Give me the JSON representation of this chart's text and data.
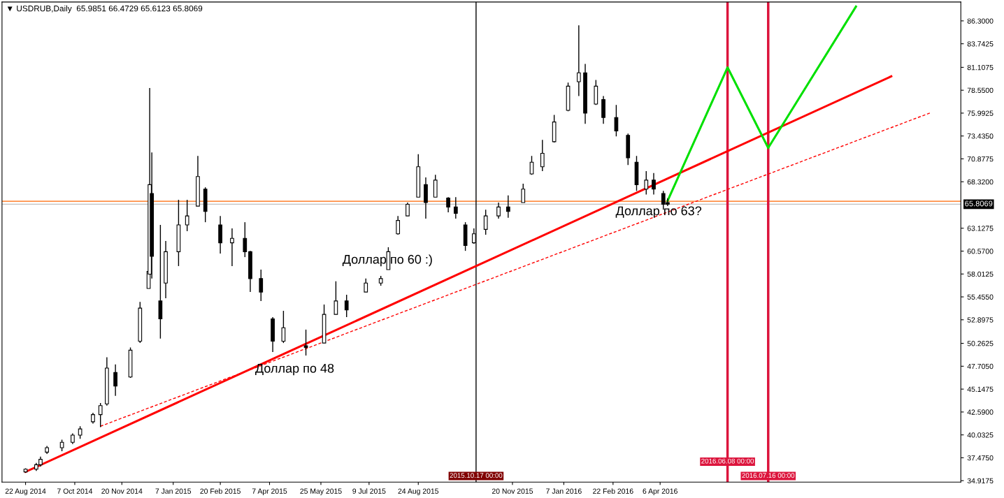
{
  "chart_data": {
    "type": "candlestick",
    "title": "▼ USDRUB,Daily  65.9851 66.4729 65.6123 65.8069",
    "x": [
      "2014-08-22",
      "2014-09-01",
      "2014-09-05",
      "2014-09-11",
      "2014-09-25",
      "2014-10-05",
      "2014-10-12",
      "2014-10-24",
      "2014-10-31",
      "2014-11-06",
      "2014-11-14",
      "2014-11-28",
      "2014-12-07",
      "2014-12-15",
      "2014-12-16",
      "2014-12-18",
      "2014-12-26",
      "2014-12-31",
      "2015-01-12",
      "2015-01-20",
      "2015-01-30",
      "2015-02-06",
      "2015-02-20",
      "2015-03-03",
      "2015-03-15",
      "2015-03-20",
      "2015-03-30",
      "2015-04-10",
      "2015-04-20",
      "2015-05-11",
      "2015-05-28",
      "2015-06-08",
      "2015-06-18",
      "2015-07-06",
      "2015-07-20",
      "2015-07-27",
      "2015-08-05",
      "2015-08-14",
      "2015-08-24",
      "2015-08-31",
      "2015-09-09",
      "2015-09-21",
      "2015-09-28",
      "2015-10-07",
      "2015-10-15",
      "2015-10-26",
      "2015-11-07",
      "2015-11-16",
      "2015-11-30",
      "2015-12-08",
      "2015-12-18",
      "2015-12-29",
      "2016-01-11",
      "2016-01-21",
      "2016-01-27",
      "2016-02-06",
      "2016-02-13",
      "2016-02-25",
      "2016-03-07",
      "2016-03-15",
      "2016-03-24",
      "2016-03-31",
      "2016-04-09",
      "2016-04-13"
    ],
    "ohlc": [
      [
        35.9,
        36.3,
        35.8,
        36.2
      ],
      [
        36.2,
        36.9,
        36.0,
        36.7
      ],
      [
        36.7,
        37.6,
        36.5,
        37.3
      ],
      [
        38.1,
        38.8,
        37.9,
        38.6
      ],
      [
        38.6,
        39.5,
        38.2,
        39.2
      ],
      [
        39.2,
        40.2,
        39.0,
        40.0
      ],
      [
        40.0,
        41.0,
        39.6,
        40.7
      ],
      [
        41.5,
        42.5,
        41.3,
        42.3
      ],
      [
        42.3,
        43.6,
        40.9,
        43.3
      ],
      [
        43.5,
        48.7,
        43.3,
        47.5
      ],
      [
        47.0,
        47.9,
        44.4,
        45.5
      ],
      [
        46.5,
        49.8,
        46.4,
        49.5
      ],
      [
        50.5,
        54.9,
        50.3,
        54.2
      ],
      [
        56.4,
        58.5,
        56.4,
        58.3
      ],
      [
        58.0,
        78.8,
        57.8,
        68.0
      ],
      [
        67.0,
        71.6,
        57.5,
        60.0
      ],
      [
        55.0,
        63.5,
        50.8,
        53.0
      ],
      [
        57.0,
        61.7,
        55.3,
        60.5
      ],
      [
        60.5,
        66.3,
        58.9,
        63.5
      ],
      [
        63.5,
        66.3,
        62.8,
        64.5
      ],
      [
        65.6,
        71.2,
        65.6,
        68.9
      ],
      [
        67.5,
        67.7,
        63.8,
        65.0
      ],
      [
        63.5,
        64.5,
        60.3,
        61.5
      ],
      [
        61.5,
        63.1,
        58.9,
        62.0
      ],
      [
        62.0,
        63.8,
        59.9,
        60.5
      ],
      [
        60.5,
        60.6,
        56.0,
        57.5
      ],
      [
        57.5,
        58.5,
        55.0,
        56.0
      ],
      [
        53.0,
        53.2,
        49.3,
        50.5
      ],
      [
        50.5,
        53.9,
        50.3,
        52.0
      ],
      [
        50.0,
        51.8,
        48.9,
        49.8
      ],
      [
        50.3,
        54.6,
        50.3,
        53.5
      ],
      [
        53.5,
        57.2,
        53.5,
        55.0
      ],
      [
        55.0,
        55.7,
        53.2,
        54.0
      ],
      [
        56.0,
        57.5,
        56.0,
        57.0
      ],
      [
        57.0,
        57.8,
        56.7,
        57.5
      ],
      [
        58.5,
        61.0,
        58.5,
        60.5
      ],
      [
        62.5,
        64.5,
        62.4,
        64.0
      ],
      [
        64.5,
        66.0,
        64.5,
        65.8
      ],
      [
        66.6,
        71.4,
        66.6,
        70.0
      ],
      [
        68.0,
        68.8,
        64.2,
        66.0
      ],
      [
        66.6,
        69.1,
        66.6,
        68.5
      ],
      [
        66.5,
        66.6,
        64.9,
        65.5
      ],
      [
        65.5,
        66.6,
        64.2,
        64.8
      ],
      [
        63.5,
        63.8,
        60.6,
        61.2
      ],
      [
        61.5,
        63.1,
        61.4,
        62.5
      ],
      [
        63.0,
        65.2,
        62.4,
        64.5
      ],
      [
        64.5,
        66.0,
        64.2,
        65.5
      ],
      [
        65.5,
        66.8,
        64.3,
        65.0
      ],
      [
        66.0,
        68.1,
        66.0,
        67.5
      ],
      [
        69.2,
        71.2,
        69.1,
        70.5
      ],
      [
        70.0,
        73.0,
        69.5,
        71.5
      ],
      [
        72.8,
        75.8,
        72.7,
        75.0
      ],
      [
        76.3,
        79.4,
        76.2,
        79.0
      ],
      [
        79.5,
        85.8,
        77.9,
        80.5
      ],
      [
        80.5,
        81.5,
        74.8,
        76.0
      ],
      [
        77.0,
        79.7,
        76.9,
        79.0
      ],
      [
        77.5,
        77.9,
        74.8,
        75.5
      ],
      [
        75.5,
        76.9,
        73.4,
        74.0
      ],
      [
        73.5,
        73.7,
        70.2,
        71.0
      ],
      [
        70.5,
        71.2,
        67.3,
        68.0
      ],
      [
        67.5,
        69.5,
        66.9,
        68.5
      ],
      [
        68.5,
        69.3,
        66.9,
        67.5
      ],
      [
        67.0,
        67.3,
        65.2,
        65.8
      ],
      [
        65.9851,
        66.4729,
        65.6123,
        65.8069
      ]
    ],
    "series": [
      {
        "type": "line",
        "color": "#ff0000",
        "line_style": "solid",
        "x": [
          "2014-08-22",
          "2016-11-08"
        ],
        "values": [
          35.9,
          80.1
        ]
      },
      {
        "type": "line",
        "color": "#ff0000",
        "line_style": "dashed",
        "x": [
          "2014-10-31",
          "2016-12-14"
        ],
        "values": [
          41.0,
          76.0
        ]
      },
      {
        "type": "line",
        "color": "#00e000",
        "line_style": "solid",
        "x": [
          "2016-04-13",
          "2016-06-08",
          "2016-07-16",
          "2016-10-06"
        ],
        "values": [
          66.2,
          81.1,
          72.1,
          87.9
        ]
      }
    ],
    "ref_lines": [
      {
        "axis": "y",
        "value": 66.1415,
        "color": "#ff6600"
      },
      {
        "axis": "y",
        "value": 65.8069,
        "color": "#c0c0c0",
        "label": "65.8069"
      },
      {
        "axis": "x",
        "value": "2015-10-17",
        "color": "#000000",
        "label": "2015.10.17 00:00"
      },
      {
        "axis": "x",
        "value": "2016-06-08",
        "color": "#dc143c",
        "label": "2016.06.08 00:00"
      },
      {
        "axis": "x",
        "value": "2016-07-16",
        "color": "#dc143c",
        "label": "2016.07.16 00:00"
      }
    ],
    "annotations": [
      "Доллар по 48",
      "Доллар по 60 :)",
      "Доллар по 63?"
    ],
    "xlim": [
      "2014-07-31",
      "2017-01-12"
    ],
    "xticks": [
      {
        "value": "2014-08-22",
        "label": "22 Aug 2014"
      },
      {
        "value": "2014-10-07",
        "label": "7 Oct 2014"
      },
      {
        "value": "2014-11-20",
        "label": "20 Nov 2014"
      },
      {
        "value": "2015-01-07",
        "label": "7 Jan 2015"
      },
      {
        "value": "2015-02-20",
        "label": "20 Feb 2015"
      },
      {
        "value": "2015-04-07",
        "label": "7 Apr 2015"
      },
      {
        "value": "2015-05-25",
        "label": "25 May 2015"
      },
      {
        "value": "2015-07-09",
        "label": "9 Jul 2015"
      },
      {
        "value": "2015-08-24",
        "label": "24 Aug 2015"
      },
      {
        "value": "2015-11-20",
        "label": "20 Nov 2015"
      },
      {
        "value": "2016-01-07",
        "label": "7 Jan 2016"
      },
      {
        "value": "2016-02-22",
        "label": "22 Feb 2016"
      },
      {
        "value": "2016-04-06",
        "label": "6 Apr 2016"
      }
    ],
    "ylim": [
      34.76,
      88.41
    ],
    "yticks": [
      {
        "value": 34.9175,
        "label": "34.9175"
      },
      {
        "value": 37.475,
        "label": "37.4750"
      },
      {
        "value": 40.0325,
        "label": "40.0325"
      },
      {
        "value": 42.59,
        "label": "42.5900"
      },
      {
        "value": 45.1475,
        "label": "45.1475"
      },
      {
        "value": 47.705,
        "label": "47.7050"
      },
      {
        "value": 50.2625,
        "label": "50.2625"
      },
      {
        "value": 52.8975,
        "label": "52.8975"
      },
      {
        "value": 55.455,
        "label": "55.4550"
      },
      {
        "value": 58.0125,
        "label": "58.0125"
      },
      {
        "value": 60.57,
        "label": "60.5700"
      },
      {
        "value": 63.1275,
        "label": "63.1275"
      },
      {
        "value": 68.32,
        "label": "68.3200"
      },
      {
        "value": 70.8775,
        "label": "70.8775"
      },
      {
        "value": 73.435,
        "label": "73.4350"
      },
      {
        "value": 75.9925,
        "label": "75.9925"
      },
      {
        "value": 78.55,
        "label": "78.5500"
      },
      {
        "value": 81.1075,
        "label": "81.1075"
      },
      {
        "value": 83.7425,
        "label": "83.7425"
      },
      {
        "value": 86.3,
        "label": "86.3000"
      }
    ],
    "grid": false,
    "legend": false
  }
}
